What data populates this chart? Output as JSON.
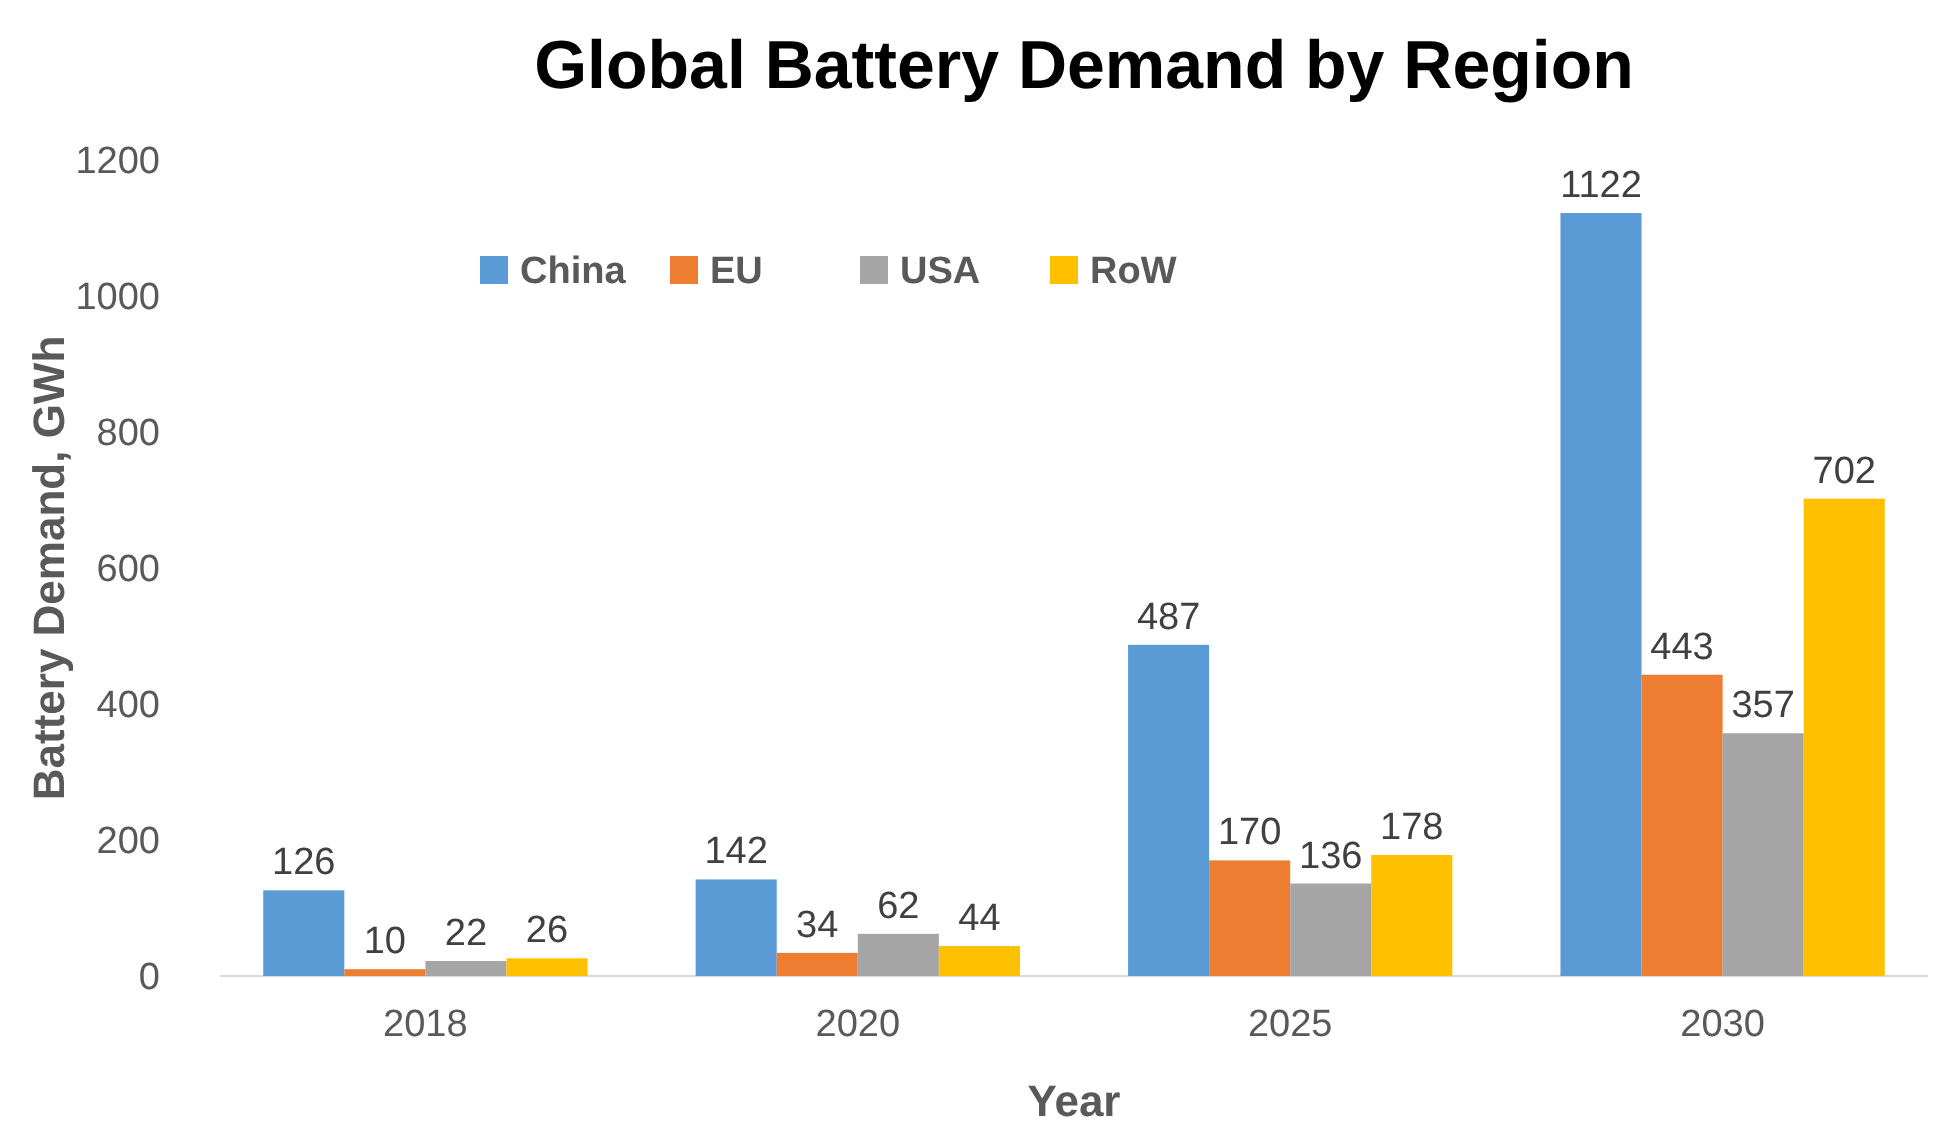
{
  "chart_data": {
    "type": "bar",
    "title": "Global Battery Demand by Region",
    "xlabel": "Year",
    "ylabel": "Battery Demand, GWh",
    "categories": [
      "2018",
      "2020",
      "2025",
      "2030"
    ],
    "series": [
      {
        "name": "China",
        "color": "#5b9bd5",
        "values": [
          126,
          142,
          487,
          1122
        ]
      },
      {
        "name": "EU",
        "color": "#ed7d31",
        "values": [
          10,
          34,
          170,
          443
        ]
      },
      {
        "name": "USA",
        "color": "#a5a5a5",
        "values": [
          22,
          62,
          136,
          357
        ]
      },
      {
        "name": "RoW",
        "color": "#ffc000",
        "values": [
          26,
          44,
          178,
          702
        ]
      }
    ],
    "ylim": [
      0,
      1200
    ],
    "yticks": [
      0,
      200,
      400,
      600,
      800,
      1000,
      1200
    ],
    "grid": false,
    "legend": "top left",
    "data_labels": true
  }
}
